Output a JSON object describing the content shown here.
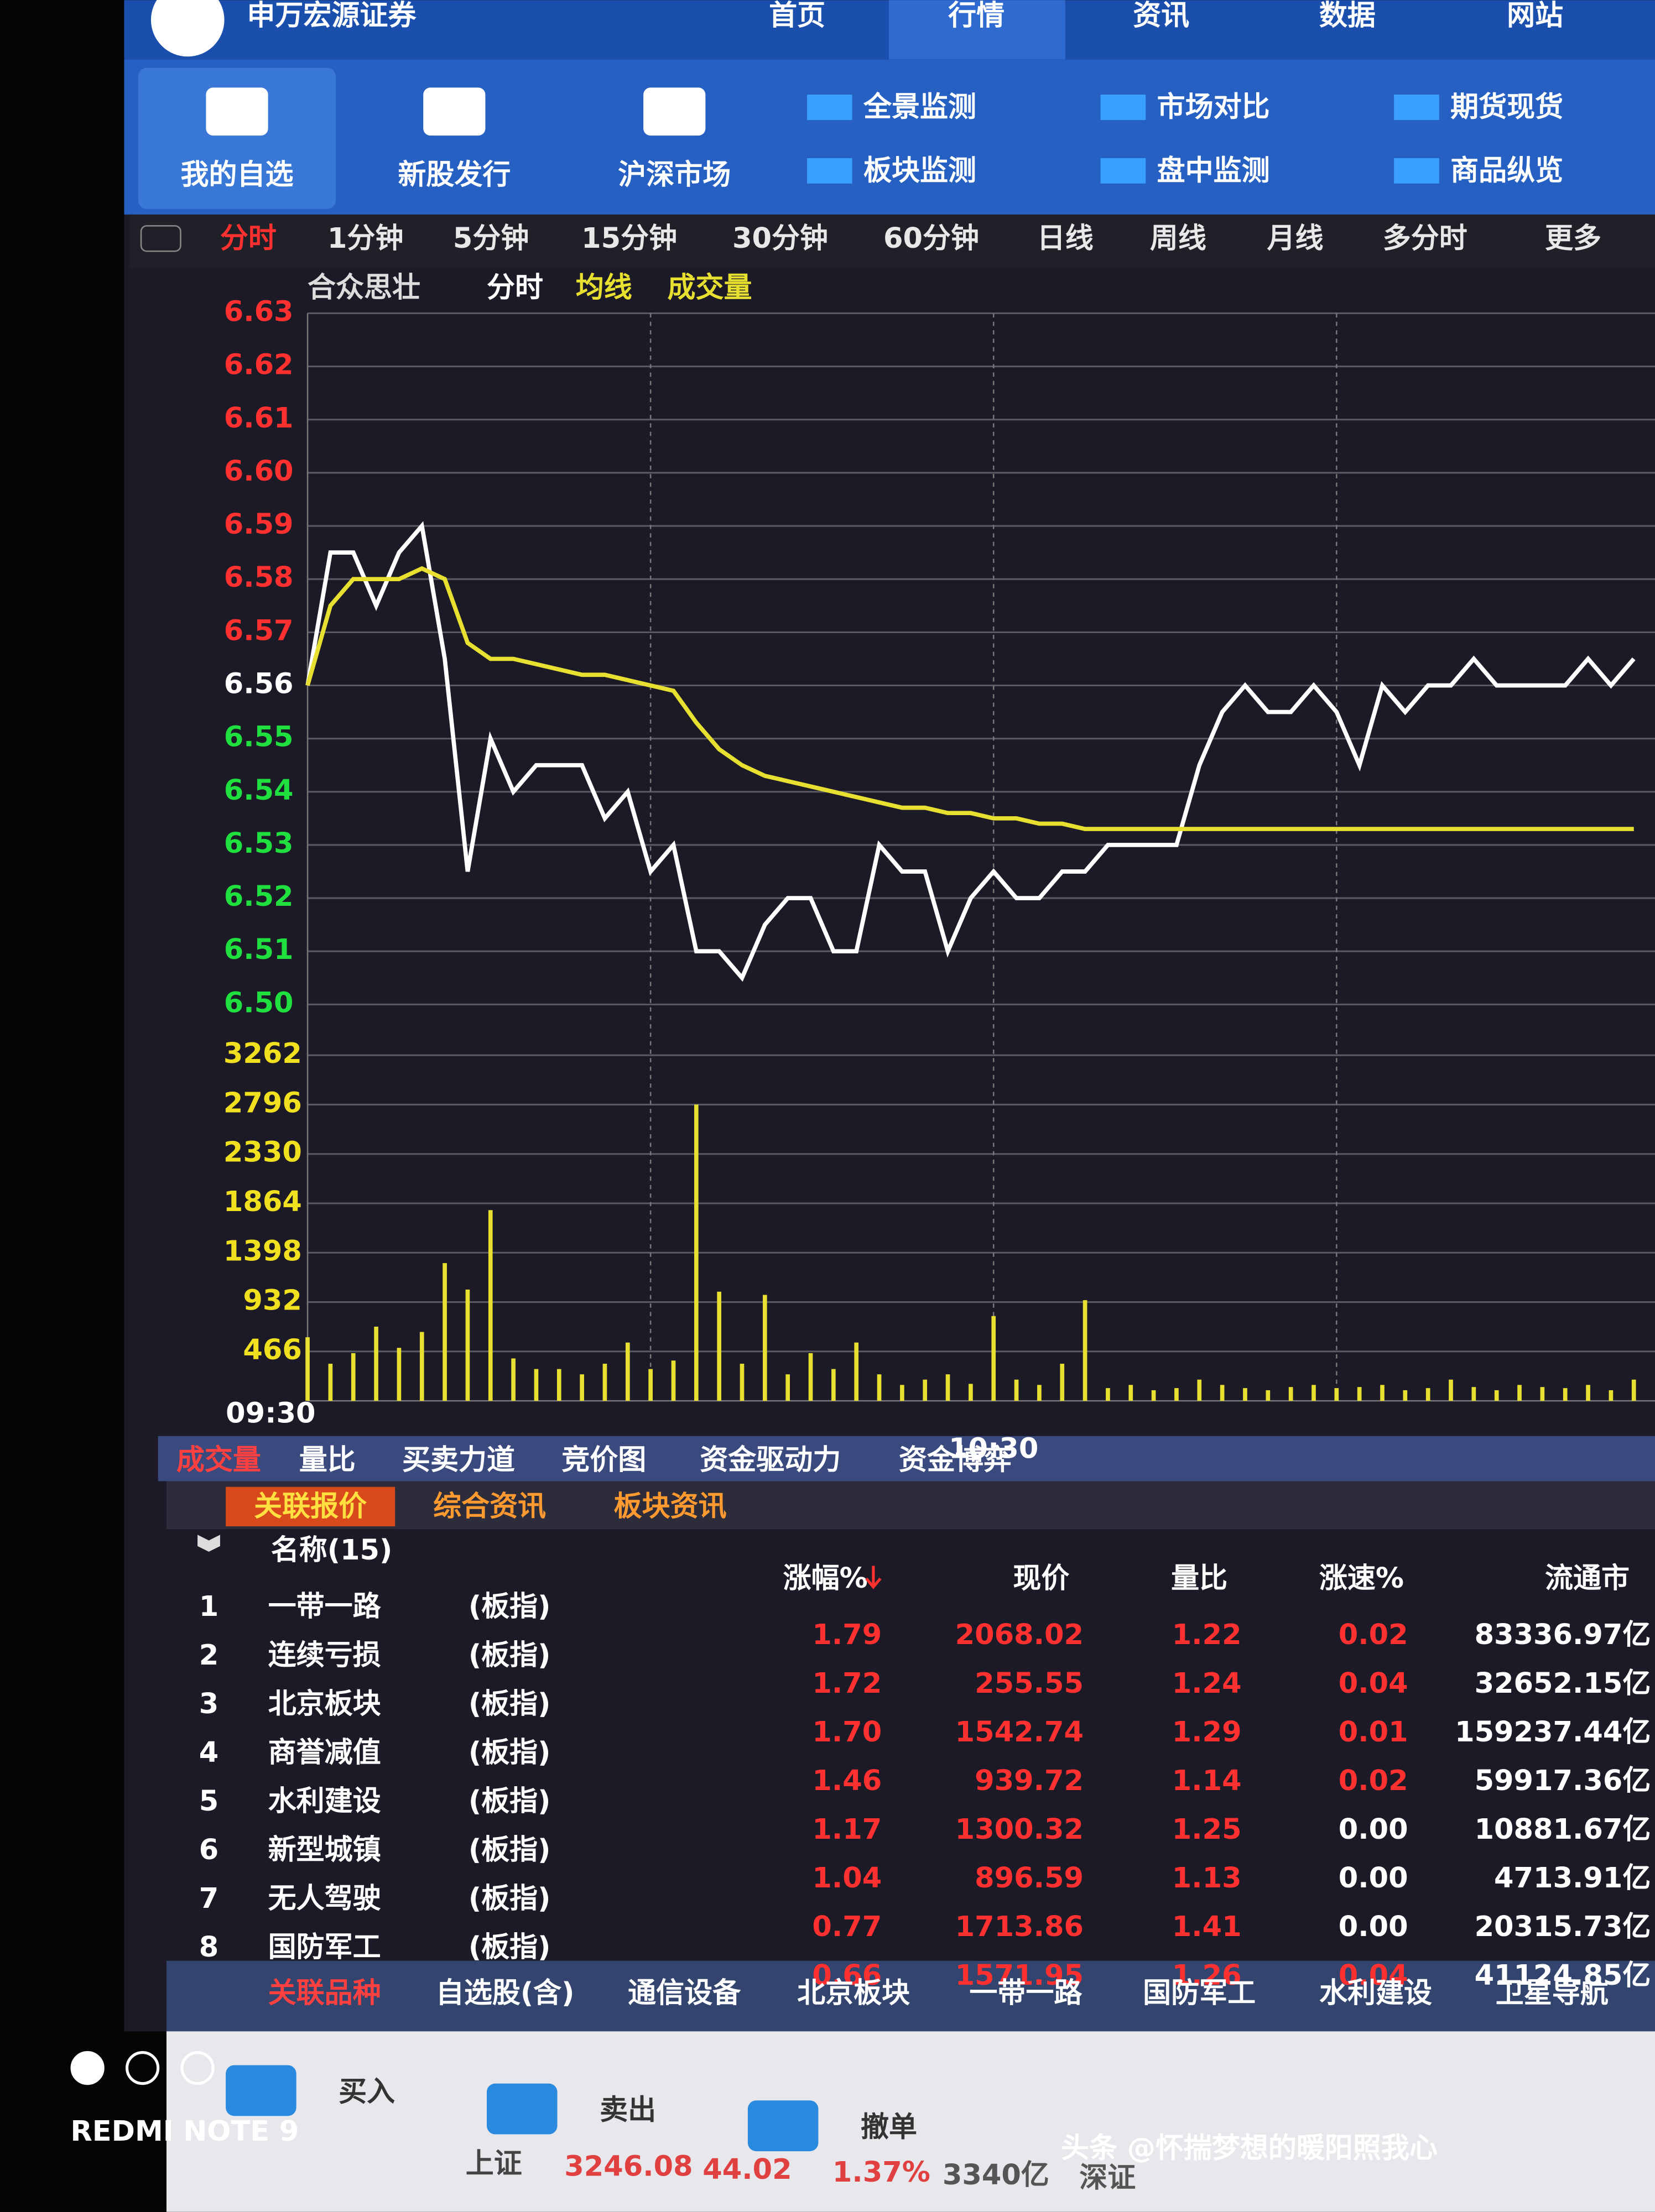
{
  "header": {
    "brand": "申万宏源证券",
    "tabs": [
      "首页",
      "行情",
      "资讯",
      "数据",
      "网站"
    ]
  },
  "toolbar": {
    "items": [
      "我的自选",
      "新股发行",
      "沪深市场"
    ],
    "links": [
      "全景监测",
      "市场对比",
      "期货现货",
      "板块监测",
      "盘中监测",
      "商品纵览"
    ]
  },
  "periods": [
    "分时",
    "1分钟",
    "5分钟",
    "15分钟",
    "30分钟",
    "60分钟",
    "日线",
    "周线",
    "月线",
    "多分时",
    "更多"
  ],
  "chart_data": [
    {
      "type": "line",
      "title": "合众思壮",
      "categories": [
        "09:30",
        null,
        null,
        null,
        null,
        null,
        null,
        null,
        null,
        null,
        null,
        null,
        null,
        null,
        null,
        null,
        null,
        null,
        null,
        null,
        null,
        null,
        null,
        null,
        null,
        null,
        null,
        null,
        null,
        null,
        "10:30",
        null,
        null,
        null,
        null,
        null,
        null,
        null,
        null,
        null,
        null,
        null,
        null,
        null,
        null,
        null,
        null,
        null,
        null,
        null,
        null,
        null,
        null,
        null,
        null,
        null,
        null,
        null,
        null
      ],
      "series": [
        {
          "name": "分时",
          "color": "#ffffff",
          "values": [
            6.56,
            6.585,
            6.585,
            6.575,
            6.585,
            6.59,
            6.565,
            6.525,
            6.55,
            6.54,
            6.545,
            6.545,
            6.545,
            6.535,
            6.54,
            6.525,
            6.53,
            6.51,
            6.51,
            6.505,
            6.515,
            6.52,
            6.52,
            6.51,
            6.51,
            6.53,
            6.525,
            6.525,
            6.51,
            6.52,
            6.525,
            6.52,
            6.52,
            6.525,
            6.525,
            6.53,
            6.53,
            6.53,
            6.53,
            6.545,
            6.555,
            6.56,
            6.555,
            6.555,
            6.56,
            6.555,
            6.545,
            6.56,
            6.555,
            6.56,
            6.56,
            6.565,
            6.56,
            6.56,
            6.56,
            6.56,
            6.565,
            6.56,
            6.565
          ]
        },
        {
          "name": "均线",
          "color": "#e8e030",
          "values": [
            6.56,
            6.575,
            6.58,
            6.58,
            6.58,
            6.582,
            6.58,
            6.568,
            6.565,
            6.565,
            6.564,
            6.563,
            6.562,
            6.562,
            6.561,
            6.56,
            6.559,
            6.553,
            6.548,
            6.545,
            6.543,
            6.542,
            6.541,
            6.54,
            6.539,
            6.538,
            6.537,
            6.537,
            6.536,
            6.536,
            6.535,
            6.535,
            6.534,
            6.534,
            6.533,
            6.533,
            6.533,
            6.533,
            6.533,
            6.533,
            6.533,
            6.533,
            6.533,
            6.533,
            6.533,
            6.533,
            6.533,
            6.533,
            6.533,
            6.533,
            6.533,
            6.533,
            6.533,
            6.533,
            6.533,
            6.533,
            6.533,
            6.533,
            6.533
          ]
        }
      ],
      "ylim": [
        6.5,
        6.63
      ],
      "yticks": [
        {
          "value": 6.5,
          "label": "6.50"
        },
        6.51,
        6.52,
        6.53,
        6.54,
        6.55,
        6.56,
        6.57,
        6.58,
        6.59,
        {
          "value": 6.6,
          "label": "6.60"
        },
        6.61,
        6.62,
        6.63
      ],
      "grid": true
    },
    {
      "type": "bar",
      "categories": [
        "09:30",
        null,
        null,
        null,
        null,
        null,
        null,
        null,
        null,
        null,
        null,
        null,
        null,
        null,
        null,
        null,
        null,
        null,
        null,
        null,
        null,
        null,
        null,
        null,
        null,
        null,
        null,
        null,
        null,
        null,
        "10:30",
        null,
        null,
        null,
        null,
        null,
        null,
        null,
        null,
        null,
        null,
        null,
        null,
        null,
        null,
        null,
        null,
        null,
        null,
        null,
        null,
        null,
        null,
        null,
        null,
        null,
        null,
        null,
        null
      ],
      "series": [
        {
          "name": "成交量",
          "color": "#e8e030",
          "values": [
            600,
            350,
            450,
            700,
            500,
            650,
            1300,
            1050,
            1800,
            400,
            300,
            300,
            250,
            350,
            550,
            300,
            380,
            2796,
            1030,
            350,
            1000,
            250,
            450,
            300,
            550,
            250,
            150,
            200,
            250,
            160,
            800,
            200,
            150,
            350,
            950,
            120,
            150,
            100,
            120,
            200,
            150,
            120,
            100,
            130,
            150,
            120,
            130,
            150,
            100,
            120,
            200,
            130,
            100,
            150,
            130,
            120,
            150,
            100,
            200
          ]
        }
      ],
      "ylim": [
        0,
        3262
      ],
      "yticks": [
        466,
        932,
        1398,
        1864,
        2330,
        2796,
        3262
      ],
      "grid": true
    }
  ],
  "indicator_tabs": [
    "成交量",
    "量比",
    "买卖力道",
    "竞价图",
    "资金驱动力",
    "资金博弈"
  ],
  "info_tabs": [
    "关联报价",
    "综合资讯",
    "板块资讯"
  ],
  "table": {
    "columns": [
      "名称(15)",
      "涨幅%",
      "现价",
      "量比",
      "涨速%",
      "流通市"
    ],
    "rows": [
      [
        "1",
        "一带一路",
        "(板指)",
        "1.79",
        "2068.02",
        "1.22",
        "0.02",
        "83336.97亿"
      ],
      [
        "2",
        "连续亏损",
        "(板指)",
        "1.72",
        "255.55",
        "1.24",
        "0.04",
        "32652.15亿"
      ],
      [
        "3",
        "北京板块",
        "(板指)",
        "1.70",
        "1542.74",
        "1.29",
        "0.01",
        "159237.44亿"
      ],
      [
        "4",
        "商誉减值",
        "(板指)",
        "1.46",
        "939.72",
        "1.14",
        "0.02",
        "59917.36亿"
      ],
      [
        "5",
        "水利建设",
        "(板指)",
        "1.17",
        "1300.32",
        "1.25",
        "0.00",
        "10881.67亿"
      ],
      [
        "6",
        "新型城镇",
        "(板指)",
        "1.04",
        "896.59",
        "1.13",
        "0.00",
        "4713.91亿"
      ],
      [
        "7",
        "无人驾驶",
        "(板指)",
        "0.77",
        "1713.86",
        "1.41",
        "0.00",
        "20315.73亿"
      ],
      [
        "8",
        "国防军工",
        "(板指)",
        "0.66",
        "1571.95",
        "1.26",
        "0.04",
        "41124.85亿"
      ]
    ]
  },
  "bottom_tabs": [
    "关联品种",
    "自选股(含)",
    "通信设备",
    "北京板块",
    "一带一路",
    "国防军工",
    "水利建设",
    "卫星导航"
  ],
  "actions": [
    "买入",
    "卖出",
    "撤单"
  ],
  "index_bar": [
    "上证",
    "3246.08",
    "44.02",
    "1.37%",
    "3340亿",
    "深证"
  ],
  "watermark": "头条 @怀揣梦想的暖阳照我心",
  "device": "REDMI NOTE 9"
}
